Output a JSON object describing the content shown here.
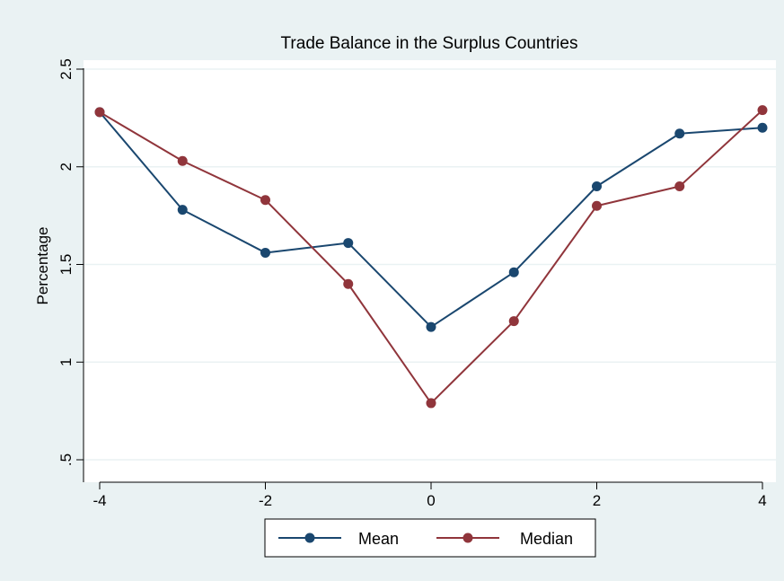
{
  "chart_data": {
    "type": "line",
    "title": "Trade Balance in the Surplus Countries",
    "xlabel": "",
    "ylabel": "Percentage",
    "x": [
      -4,
      -3,
      -2,
      -1,
      0,
      1,
      2,
      3,
      4
    ],
    "xlim": [
      -4,
      4
    ],
    "ylim": [
      0.5,
      2.5
    ],
    "xticks": [
      -4,
      -2,
      0,
      2,
      4
    ],
    "yticks": [
      0.5,
      1,
      1.5,
      2,
      2.5
    ],
    "xtick_labels": [
      "-4",
      "-2",
      "0",
      "2",
      "4"
    ],
    "ytick_labels": [
      ".5",
      "1",
      "1.5",
      "2",
      "2.5"
    ],
    "grid": "horizontal",
    "legend_position": "bottom",
    "series": [
      {
        "name": "Mean",
        "color": "#1a476f",
        "values": [
          2.28,
          1.78,
          1.56,
          1.61,
          1.18,
          1.46,
          1.9,
          2.17,
          2.2
        ]
      },
      {
        "name": "Median",
        "color": "#90353b",
        "values": [
          2.28,
          2.03,
          1.83,
          1.4,
          0.79,
          1.21,
          1.8,
          1.9,
          2.29
        ]
      }
    ],
    "colors": {
      "page_background": "#eaf2f3",
      "plot_background": "#ffffff",
      "grid": "#eaf2f3",
      "axis": "#000000"
    }
  }
}
